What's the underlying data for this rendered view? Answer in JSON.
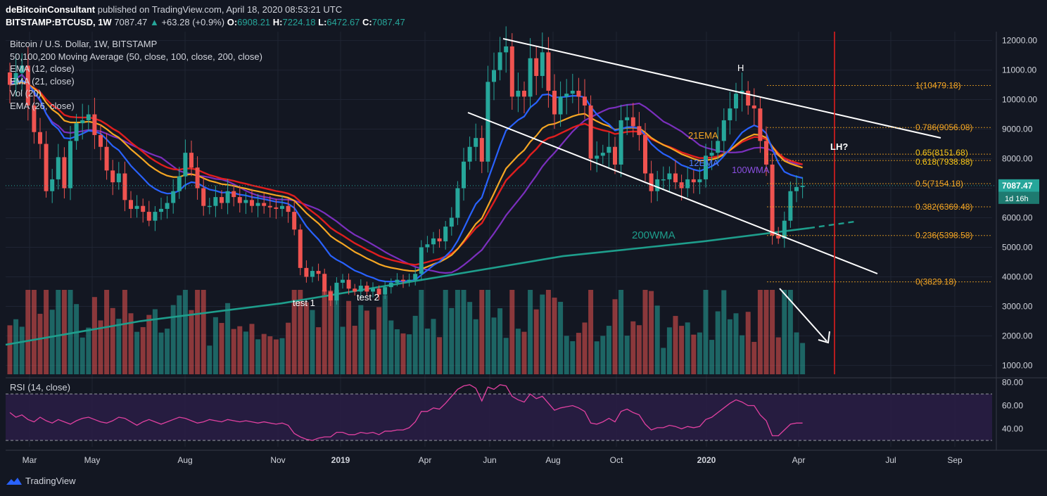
{
  "header": {
    "author": "deBitcoinConsultant",
    "published": "published on TradingView.com, April 18, 2020 08:53:21 UTC",
    "symbol": "BITSTAMP:BTCUSD, 1W",
    "last": "7087.47",
    "change": "+63.28 (+0.9%)",
    "open_label": "O:",
    "open": "6908.21",
    "high_label": "H:",
    "high": "7224.18",
    "low_label": "L:",
    "low": "6472.67",
    "close_label": "C:",
    "close": "7087.47"
  },
  "legend": [
    "Bitcoin / U.S. Dollar, 1W, BITSTAMP",
    "50,100,200 Moving Average (50, close, 100, close, 200, close)",
    "EMA (12, close)",
    "EMA (21, close)",
    "Vol (20)",
    "EMA (26, close)"
  ],
  "brand": "TradingView",
  "colors": {
    "background": "#131722",
    "up": "#26a69a",
    "down": "#ef5350",
    "ema12": "#2962ff",
    "ema21": "#f5a623",
    "ema26": "#e01e1e",
    "wma100": "#7b2fbe",
    "wma200": "#1e9e8c",
    "rsi": "#e040a0",
    "fib": "#f5a623",
    "vline": "#e01e1e"
  },
  "chart_data": {
    "type": "candlestick",
    "title": "Bitcoin / U.S. Dollar, 1W, BITSTAMP",
    "y_ticks": [
      1000,
      2000,
      3000,
      4000,
      5000,
      6000,
      7000,
      8000,
      9000,
      10000,
      11000,
      12000
    ],
    "y_tick_labels": [
      "1000.00",
      "2000.00",
      "3000.00",
      "4000.00",
      "5000.00",
      "6000.00",
      "7000.00",
      "8000.00",
      "9000.00",
      "10000.00",
      "11000.00",
      "12000.00"
    ],
    "ylim": [
      700,
      12300
    ],
    "x_ticks": [
      "Mar",
      "May",
      "Aug",
      "Nov",
      "2019",
      "Apr",
      "Jun",
      "Aug",
      "Oct",
      "2020",
      "Apr",
      "Jul",
      "Sep"
    ],
    "price_label": "7087.47",
    "countdown_label": "1d 16h",
    "closes": [
      10500,
      10900,
      11150,
      9800,
      8900,
      8500,
      6900,
      7300,
      8050,
      7000,
      8600,
      9200,
      9300,
      9500,
      8800,
      8400,
      7600,
      7200,
      7500,
      6600,
      6300,
      6400,
      6200,
      5900,
      6200,
      6300,
      6500,
      6900,
      7400,
      8200,
      7700,
      7000,
      6400,
      6400,
      6700,
      6500,
      6900,
      6700,
      6500,
      6600,
      6400,
      6500,
      6400,
      6350,
      6300,
      6400,
      6200,
      5600,
      4300,
      4000,
      4200,
      4100,
      3500,
      3200,
      3800,
      3900,
      3600,
      3500,
      3700,
      3500,
      3600,
      3400,
      3650,
      3800,
      3900,
      3850,
      3900,
      4100,
      5000,
      5100,
      5300,
      5200,
      5700,
      6000,
      7000,
      7900,
      8400,
      8700,
      7900,
      10600,
      11000,
      11600,
      11800,
      10100,
      10300,
      10100,
      11400,
      10800,
      11600,
      10300,
      9500,
      10100,
      10200,
      10300,
      10100,
      9800,
      8000,
      8100,
      8200,
      8400,
      7800,
      9300,
      9400,
      9100,
      8800,
      7500,
      6900,
      7300,
      7300,
      7500,
      7200,
      7000,
      7300,
      7200,
      7300,
      8100,
      8200,
      8600,
      9300,
      9700,
      10200,
      10300,
      9800,
      9700,
      8600,
      7800,
      5400,
      5300,
      5900,
      6900,
      7040,
      7087
    ],
    "fib_levels": [
      {
        "ratio": "1",
        "price": 10479.18,
        "label": "1(10479.18)"
      },
      {
        "ratio": "0.786",
        "price": 9056.08,
        "label": "0.786(9056.08)"
      },
      {
        "ratio": "0.65",
        "price": 8151.68,
        "label": "0.65(8151.68)"
      },
      {
        "ratio": "0.618",
        "price": 7938.88,
        "label": "0.618(7938.88)"
      },
      {
        "ratio": "0.5",
        "price": 7154.18,
        "label": "0.5(7154.18)"
      },
      {
        "ratio": "0.382",
        "price": 6369.48,
        "label": "0.382(6369.48)"
      },
      {
        "ratio": "0.236",
        "price": 5398.58,
        "label": "0.236(5398.58)"
      },
      {
        "ratio": "0",
        "price": 3829.18,
        "label": "0(3829.18)"
      }
    ],
    "annotations": [
      "H",
      "LH?",
      "21EMA",
      "12EMA",
      "100WMA",
      "200WMA",
      "test 1",
      "test 2"
    ],
    "rsi": {
      "label": "RSI (14, close)",
      "ticks": [
        40,
        60,
        80
      ],
      "tick_labels": [
        "40.00",
        "60.00",
        "80.00"
      ],
      "overbought": 70,
      "oversold": 30,
      "values": [
        54,
        50,
        52,
        48,
        46,
        50,
        47,
        45,
        48,
        46,
        44,
        47,
        49,
        50,
        48,
        46,
        45,
        47,
        50,
        49,
        46,
        43,
        46,
        48,
        46,
        44,
        46,
        48,
        50,
        49,
        47,
        45,
        46,
        48,
        47,
        46,
        48,
        47,
        46,
        47,
        46,
        45,
        46,
        45,
        44,
        45,
        43,
        36,
        33,
        31,
        30,
        32,
        33,
        33,
        37,
        37,
        35,
        35,
        37,
        36,
        37,
        35,
        38,
        38,
        39,
        39,
        41,
        46,
        55,
        55,
        58,
        57,
        62,
        68,
        74,
        77,
        78,
        75,
        64,
        76,
        74,
        78,
        77,
        68,
        65,
        63,
        70,
        66,
        68,
        62,
        56,
        58,
        59,
        60,
        58,
        55,
        45,
        44,
        46,
        49,
        46,
        55,
        57,
        54,
        52,
        44,
        39,
        41,
        41,
        43,
        42,
        40,
        42,
        41,
        42,
        48,
        50,
        54,
        58,
        62,
        65,
        63,
        60,
        60,
        52,
        47,
        34,
        34,
        39,
        44,
        45,
        45
      ]
    }
  }
}
